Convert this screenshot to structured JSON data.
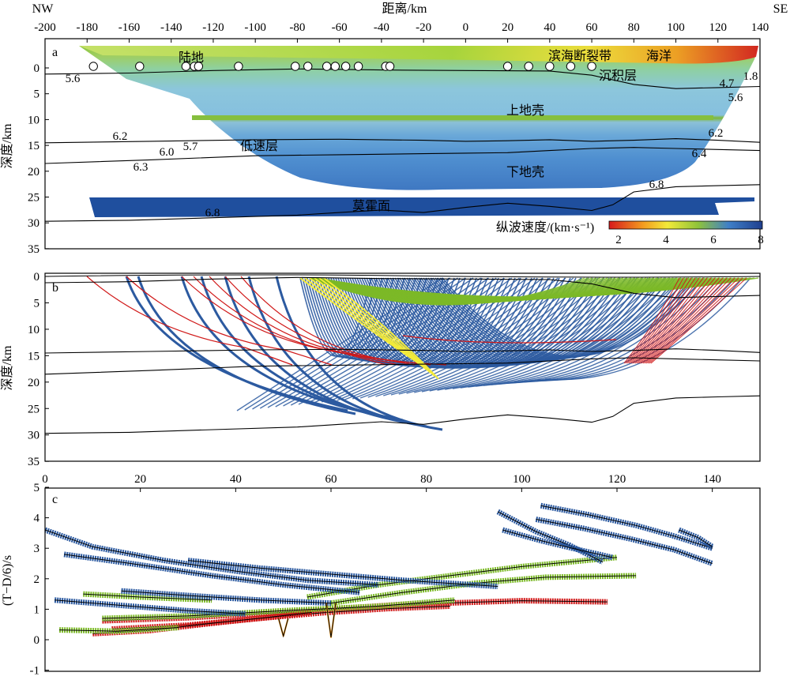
{
  "colors": {
    "deep_blue": "#1f4f9e",
    "mid_blue": "#3f7fc8",
    "light_blue": "#8fc3de",
    "green": "#7ab52a",
    "yellow": "#f2e23a",
    "orange": "#f39b1f",
    "red": "#d7191c",
    "ray_red": "#d01818",
    "ray_yellow": "#f3ea39",
    "ray_green": "#7cb928",
    "ray_blue": "#2c5aa0"
  },
  "panel_a": {
    "id": "a",
    "top_orientation": {
      "left": "NW",
      "right": "SE"
    },
    "x_axis_title": "距离/km",
    "y_axis_title": "深度/km",
    "x_ticks": [
      "-200",
      "-180",
      "-160",
      "-140",
      "-120",
      "-100",
      "-80",
      "-60",
      "-40",
      "-20",
      "0",
      "20",
      "40",
      "60",
      "80",
      "100",
      "120",
      "140"
    ],
    "y_ticks": [
      "0",
      "5",
      "10",
      "15",
      "20",
      "25",
      "30",
      "35"
    ],
    "labels": {
      "land": "陆地",
      "fault": "滨海断裂带",
      "ocean": "海洋",
      "sediment": "沉积层",
      "upper_crust": "上地壳",
      "low_velocity": "低速层",
      "lower_crust": "下地壳",
      "moho": "莫霍面"
    },
    "velocity_labels": [
      "5.6",
      "1.8",
      "4.7",
      "5.6",
      "6.2",
      "6.0",
      "5.7",
      "6.3",
      "6.2",
      "6.4",
      "6.8",
      "6.8"
    ],
    "colorbar": {
      "title": "纵波速度/(km·s⁻¹)",
      "ticks": [
        "2",
        "4",
        "6",
        "8"
      ]
    }
  },
  "panel_b": {
    "id": "b",
    "y_axis_title": "深度/km",
    "y_ticks": [
      "0",
      "5",
      "10",
      "15",
      "20",
      "25",
      "30",
      "35"
    ]
  },
  "panel_c": {
    "id": "c",
    "y_axis_title": "(T−D/6)/s",
    "x_ticks": [
      "0",
      "20",
      "40",
      "60",
      "80",
      "100",
      "120",
      "140"
    ],
    "y_ticks": [
      "5",
      "4",
      "3",
      "2",
      "1",
      "0",
      "-1"
    ]
  },
  "chart_data": [
    {
      "type": "heatmap",
      "panel": "a",
      "description_text": "",
      "xlabel": "距离/km",
      "ylabel": "深度/km",
      "xlim": [
        -200,
        140
      ],
      "ylim": [
        35,
        -5
      ],
      "stations_x_km": [
        -177,
        -155,
        -133,
        -129,
        -127,
        -108,
        -81,
        -75,
        -66,
        -62,
        -57,
        -51,
        -38,
        -36,
        20,
        30,
        40,
        50,
        60
      ],
      "interfaces": [
        {
          "name": "沉积层底",
          "x": [
            -200,
            -160,
            -120,
            -80,
            -40,
            0,
            40,
            60,
            80,
            100,
            120,
            140
          ],
          "y": [
            1.2,
            1.0,
            0.5,
            0.2,
            0.4,
            0.5,
            0.6,
            1.4,
            3.2,
            4.0,
            3.8,
            3.6
          ]
        },
        {
          "name": "低速层顶",
          "x": [
            -200,
            -150,
            -100,
            -60,
            -20,
            0,
            20,
            40,
            60,
            80,
            100,
            120,
            140
          ],
          "y": [
            14.5,
            14.2,
            13.9,
            13.8,
            14.0,
            14.2,
            14.1,
            13.9,
            14.2,
            14.0,
            13.7,
            14.0,
            14.4
          ]
        },
        {
          "name": "低速层底",
          "x": [
            -200,
            -150,
            -100,
            -60,
            -20,
            0,
            20,
            40,
            60,
            80,
            100,
            120,
            140
          ],
          "y": [
            18.5,
            17.8,
            17.0,
            16.8,
            16.6,
            16.5,
            16.4,
            16.0,
            15.6,
            15.4,
            15.6,
            15.8,
            16.0
          ]
        },
        {
          "name": "莫霍面",
          "x": [
            -200,
            -160,
            -120,
            -80,
            -60,
            -40,
            -20,
            0,
            20,
            40,
            60,
            70,
            80,
            100,
            120,
            140
          ],
          "y": [
            29.7,
            29.5,
            29.0,
            28.5,
            28.0,
            27.5,
            28.0,
            27.0,
            26.2,
            26.8,
            27.6,
            26.5,
            24.0,
            23.0,
            22.8,
            22.6
          ]
        }
      ],
      "velocity_range": [
        1.5,
        8.0
      ]
    },
    {
      "type": "line",
      "panel": "b",
      "description_text": "",
      "ylabel": "深度/km",
      "ylim": [
        35,
        0
      ],
      "xlim": [
        -200,
        140
      ]
    },
    {
      "type": "scatter",
      "panel": "c",
      "xlabel": "",
      "ylabel": "(T−D/6)/s",
      "xlim": [
        0,
        150
      ],
      "ylim": [
        -1,
        5
      ],
      "series": [
        {
          "color_key": "ray_red",
          "segments": [
            [
              [
                12,
                0.62
              ],
              [
                30,
                0.72
              ],
              [
                48,
                0.88
              ],
              [
                62,
                1.02
              ],
              [
                74,
                1.15
              ],
              [
                88,
                1.22
              ],
              [
                100,
                1.28
              ],
              [
                118,
                1.24
              ]
            ],
            [
              [
                14,
                0.35
              ],
              [
                30,
                0.48
              ],
              [
                45,
                0.7
              ],
              [
                58,
                0.88
              ],
              [
                72,
                1.02
              ],
              [
                85,
                1.1
              ]
            ],
            [
              [
                10,
                0.2
              ],
              [
                22,
                0.3
              ],
              [
                34,
                0.52
              ],
              [
                46,
                0.72
              ],
              [
                56,
                0.9
              ]
            ]
          ]
        },
        {
          "color_key": "ray_green",
          "segments": [
            [
              [
                12,
                0.7
              ],
              [
                30,
                0.78
              ],
              [
                50,
                0.95
              ],
              [
                70,
                1.1
              ],
              [
                86,
                1.3
              ]
            ],
            [
              [
                55,
                1.4
              ],
              [
                70,
                1.8
              ],
              [
                85,
                2.1
              ],
              [
                100,
                2.4
              ],
              [
                120,
                2.7
              ]
            ],
            [
              [
                60,
                1.2
              ],
              [
                75,
                1.55
              ],
              [
                90,
                1.85
              ],
              [
                105,
                2.05
              ],
              [
                124,
                2.1
              ]
            ],
            [
              [
                3,
                0.32
              ],
              [
                15,
                0.28
              ],
              [
                28,
                0.4
              ]
            ],
            [
              [
                8,
                1.5
              ],
              [
                20,
                1.4
              ],
              [
                35,
                1.3
              ]
            ]
          ]
        },
        {
          "color_key": "ray_blue",
          "segments": [
            [
              [
                0,
                3.6
              ],
              [
                10,
                3.05
              ],
              [
                25,
                2.6
              ],
              [
                40,
                2.25
              ],
              [
                55,
                1.95
              ],
              [
                70,
                1.8
              ]
            ],
            [
              [
                4,
                2.8
              ],
              [
                18,
                2.5
              ],
              [
                35,
                2.1
              ],
              [
                50,
                1.8
              ],
              [
                66,
                1.55
              ]
            ],
            [
              [
                2,
                1.3
              ],
              [
                18,
                1.1
              ],
              [
                30,
                0.95
              ],
              [
                42,
                0.85
              ]
            ],
            [
              [
                30,
                2.6
              ],
              [
                45,
                2.35
              ],
              [
                60,
                2.15
              ],
              [
                75,
                1.95
              ],
              [
                95,
                1.75
              ]
            ],
            [
              [
                16,
                1.6
              ],
              [
                30,
                1.45
              ],
              [
                45,
                1.3
              ],
              [
                60,
                1.2
              ]
            ],
            [
              [
                95,
                4.2
              ],
              [
                103,
                3.55
              ],
              [
                110,
                3.1
              ],
              [
                117,
                2.55
              ]
            ],
            [
              [
                96,
                3.6
              ],
              [
                104,
                3.25
              ],
              [
                112,
                2.95
              ],
              [
                119,
                2.7
              ]
            ],
            [
              [
                104,
                4.4
              ],
              [
                114,
                4.1
              ],
              [
                124,
                3.75
              ],
              [
                132,
                3.4
              ],
              [
                140,
                3.0
              ]
            ],
            [
              [
                103,
                3.95
              ],
              [
                113,
                3.65
              ],
              [
                123,
                3.3
              ],
              [
                132,
                2.95
              ],
              [
                140,
                2.5
              ]
            ],
            [
              [
                133,
                3.6
              ],
              [
                137,
                3.35
              ],
              [
                140,
                3.05
              ]
            ]
          ]
        },
        {
          "color_key": "orange",
          "segments": [
            [
              [
                49,
                0.7
              ],
              [
                50,
                0.12
              ],
              [
                51,
                0.7
              ]
            ],
            [
              [
                59,
                1.2
              ],
              [
                60,
                0.08
              ],
              [
                61,
                1.2
              ]
            ]
          ]
        }
      ]
    }
  ]
}
